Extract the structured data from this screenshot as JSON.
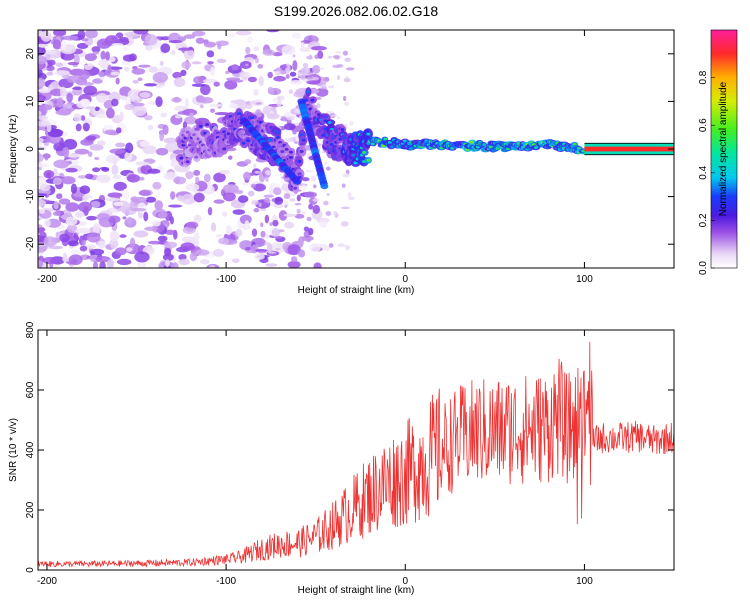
{
  "title": "S199.2026.082.06.02.G18",
  "colors": {
    "snr_line": "#ee3333",
    "spectral_core": "#00e676",
    "spectral_peak": "#ff3d7f",
    "axis": "#000000"
  },
  "chart_data": [
    {
      "type": "heatmap",
      "name": "spectrogram",
      "xlabel": "Height of straight line (km)",
      "ylabel": "Frequency (Hz)",
      "xlim": [
        -205,
        150
      ],
      "ylim": [
        -25,
        25
      ],
      "xticks": [
        -200,
        -100,
        0,
        100
      ],
      "yticks": [
        -20,
        -10,
        0,
        10,
        20
      ],
      "colorbar": {
        "label": "Normalized spectral amplitude",
        "range": [
          0,
          1
        ],
        "ticks": [
          0.0,
          0.2,
          0.4,
          0.6,
          0.8
        ],
        "tick_labels": [
          "0.0",
          "0.2",
          "0.4",
          "0.6",
          "0.8"
        ]
      },
      "ridge": [
        {
          "x": -120,
          "freq": 0.5,
          "amp": 0.22
        },
        {
          "x": -90,
          "freq": 4.5,
          "amp": 0.3
        },
        {
          "x": -70,
          "freq": 0,
          "amp": 0.32
        },
        {
          "x": -60,
          "freq": -6,
          "amp": 0.28
        },
        {
          "x": -55,
          "freq": 9,
          "amp": 0.3
        },
        {
          "x": -40,
          "freq": 1.5,
          "amp": 0.35
        },
        {
          "x": -30,
          "freq": 0,
          "amp": 0.45
        },
        {
          "x": -15,
          "freq": 1.5,
          "amp": 0.6
        },
        {
          "x": 0,
          "freq": 1,
          "amp": 0.55
        },
        {
          "x": 25,
          "freq": 0.8,
          "amp": 0.6
        },
        {
          "x": 50,
          "freq": 0.5,
          "amp": 0.55
        },
        {
          "x": 80,
          "freq": 0.8,
          "amp": 0.6
        },
        {
          "x": 100,
          "freq": 0,
          "amp": 0.7
        },
        {
          "x": 150,
          "freq": 0,
          "amp": 1.0
        }
      ]
    },
    {
      "type": "line",
      "name": "snr",
      "xlabel": "Height of straight line (km)",
      "ylabel": "SNR (10 * v/v)",
      "xlim": [
        -205,
        150
      ],
      "ylim": [
        0,
        800
      ],
      "xticks": [
        -200,
        -100,
        0,
        100
      ],
      "yticks": [
        0,
        200,
        400,
        600,
        800
      ],
      "series": [
        {
          "name": "SNR",
          "x": [
            -205,
            -180,
            -150,
            -120,
            -100,
            -90,
            -85,
            -80,
            -70,
            -60,
            -50,
            -40,
            -30,
            -20,
            -10,
            0,
            10,
            20,
            30,
            40,
            50,
            60,
            70,
            80,
            85,
            90,
            95,
            100,
            102,
            105,
            110,
            120,
            130,
            140,
            150
          ],
          "values": [
            20,
            20,
            22,
            25,
            35,
            45,
            60,
            70,
            85,
            90,
            110,
            150,
            200,
            250,
            290,
            320,
            360,
            400,
            440,
            460,
            460,
            470,
            470,
            480,
            520,
            470,
            480,
            500,
            600,
            430,
            440,
            440,
            445,
            430,
            445
          ]
        }
      ]
    }
  ]
}
